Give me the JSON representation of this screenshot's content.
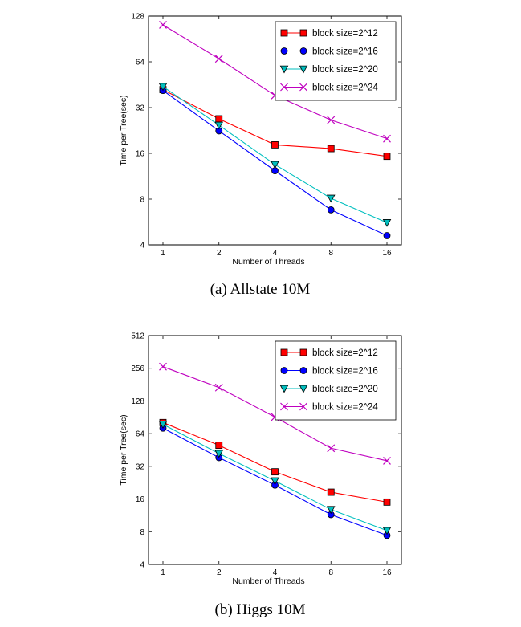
{
  "chart_data": [
    {
      "type": "line",
      "caption": "(a) Allstate 10M",
      "xlabel": "Number of Threads",
      "ylabel": "Time per Tree(sec)",
      "x": [
        1,
        2,
        4,
        8,
        16
      ],
      "x_scale": "log2",
      "y_scale": "log2",
      "ylim": [
        4,
        128
      ],
      "yticks": [
        4,
        8,
        16,
        32,
        64,
        128
      ],
      "grid": false,
      "legend_position": "top-right",
      "series": [
        {
          "name": "block size=2^12",
          "marker": "square",
          "color": "#ff0000",
          "line_color": "#ff0000",
          "values": [
            42,
            27,
            18.2,
            17.2,
            15.3
          ]
        },
        {
          "name": "block size=2^16",
          "marker": "circle",
          "color": "#0000ff",
          "line_color": "#0000ff",
          "values": [
            41.5,
            22.5,
            12.3,
            6.8,
            4.6
          ]
        },
        {
          "name": "block size=2^20",
          "marker": "triangle-down",
          "color": "#00bfbf",
          "line_color": "#00bfbf",
          "values": [
            44,
            24.5,
            13.5,
            8.1,
            5.6
          ]
        },
        {
          "name": "block size=2^24",
          "marker": "x",
          "color": "#bf00bf",
          "line_color": "#bf00bf",
          "values": [
            112,
            67,
            38.5,
            26.5,
            20
          ]
        }
      ]
    },
    {
      "type": "line",
      "caption": "(b) Higgs 10M",
      "xlabel": "Number of Threads",
      "ylabel": "Time per Tree(sec)",
      "x": [
        1,
        2,
        4,
        8,
        16
      ],
      "x_scale": "log2",
      "y_scale": "log2",
      "ylim": [
        4,
        512
      ],
      "yticks": [
        4,
        8,
        16,
        32,
        64,
        128,
        256,
        512
      ],
      "grid": false,
      "legend_position": "top-right",
      "series": [
        {
          "name": "block size=2^12",
          "marker": "square",
          "color": "#ff0000",
          "line_color": "#ff0000",
          "values": [
            81,
            50,
            28.5,
            18.5,
            15
          ]
        },
        {
          "name": "block size=2^16",
          "marker": "circle",
          "color": "#0000ff",
          "line_color": "#0000ff",
          "values": [
            72,
            38.5,
            21.5,
            11.5,
            7.4
          ]
        },
        {
          "name": "block size=2^20",
          "marker": "triangle-down",
          "color": "#00bfbf",
          "line_color": "#00bfbf",
          "values": [
            78,
            42,
            23.5,
            12.8,
            8.2
          ]
        },
        {
          "name": "block size=2^24",
          "marker": "x",
          "color": "#bf00bf",
          "line_color": "#bf00bf",
          "values": [
            265,
            170,
            91,
            47,
            36
          ]
        }
      ]
    }
  ]
}
